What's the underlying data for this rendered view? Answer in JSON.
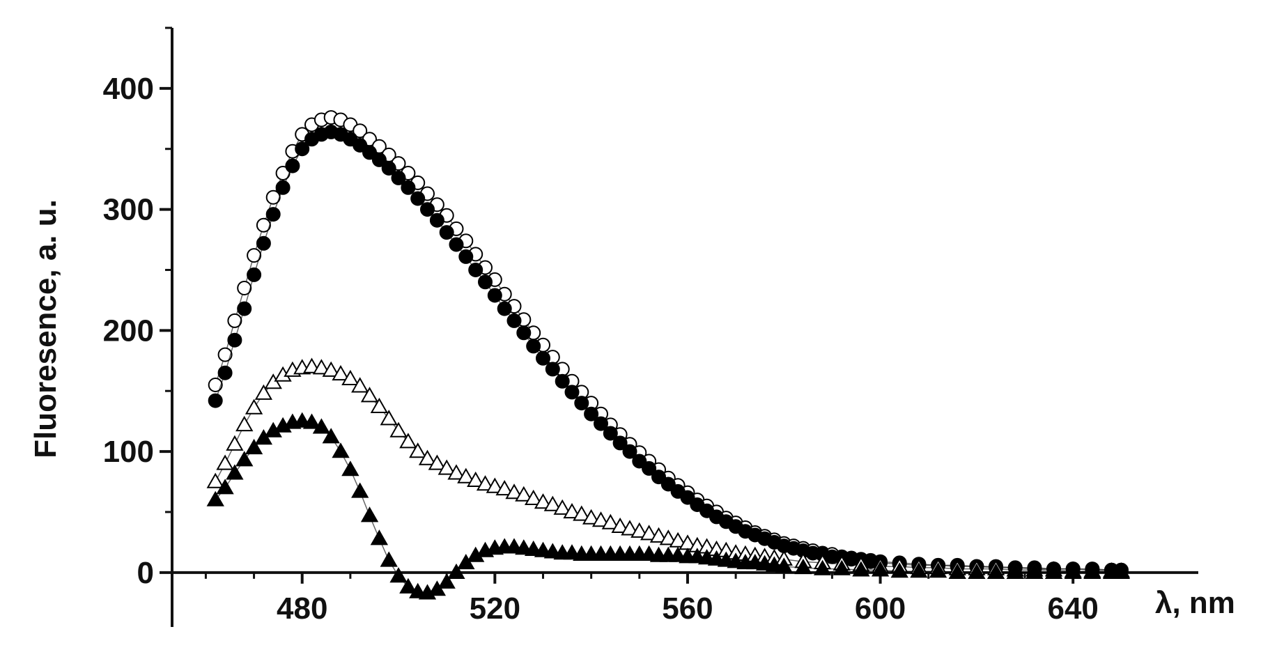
{
  "chart_data": {
    "type": "scatter",
    "title": "",
    "xlabel": "λ, nm",
    "ylabel": "Fluoresence, a. u.",
    "xlim": [
      453,
      666
    ],
    "ylim": [
      -45,
      450
    ],
    "x_ticks": [
      480,
      520,
      560,
      600,
      640
    ],
    "y_ticks": [
      0,
      100,
      200,
      300,
      400
    ],
    "grid": false,
    "legend": "none",
    "series": [
      {
        "marker": "open-circle",
        "color": "#000000",
        "x": [
          462,
          464,
          466,
          468,
          470,
          472,
          474,
          476,
          478,
          480,
          482,
          484,
          486,
          488,
          490,
          492,
          494,
          496,
          498,
          500,
          502,
          504,
          506,
          508,
          510,
          512,
          514,
          516,
          518,
          520,
          522,
          524,
          526,
          528,
          530,
          532,
          534,
          536,
          538,
          540,
          542,
          544,
          546,
          548,
          550,
          552,
          554,
          556,
          558,
          560,
          562,
          564,
          566,
          568,
          570,
          572,
          574,
          576,
          578,
          580,
          582,
          584,
          586,
          588,
          590,
          592,
          594,
          596,
          598,
          600,
          604,
          608,
          612,
          616,
          620,
          624,
          628,
          632,
          636,
          640,
          644,
          648,
          650
        ],
        "y": [
          155,
          180,
          208,
          235,
          262,
          287,
          310,
          330,
          348,
          362,
          370,
          374,
          376,
          374,
          370,
          365,
          358,
          352,
          345,
          338,
          330,
          322,
          313,
          304,
          295,
          284,
          274,
          263,
          252,
          242,
          230,
          220,
          209,
          198,
          188,
          178,
          168,
          158,
          149,
          140,
          131,
          122,
          114,
          106,
          99,
          92,
          85,
          78,
          72,
          66,
          60,
          55,
          50,
          45,
          41,
          37,
          33,
          30,
          27,
          24,
          22,
          20,
          18,
          16,
          15,
          13,
          12,
          11,
          10,
          9,
          8,
          7,
          6,
          6,
          5,
          5,
          4,
          4,
          3,
          3,
          3,
          2,
          2
        ]
      },
      {
        "marker": "filled-circle",
        "color": "#000000",
        "x": [
          462,
          464,
          466,
          468,
          470,
          472,
          474,
          476,
          478,
          480,
          482,
          484,
          486,
          488,
          490,
          492,
          494,
          496,
          498,
          500,
          502,
          504,
          506,
          508,
          510,
          512,
          514,
          516,
          518,
          520,
          522,
          524,
          526,
          528,
          530,
          532,
          534,
          536,
          538,
          540,
          542,
          544,
          546,
          548,
          550,
          552,
          554,
          556,
          558,
          560,
          562,
          564,
          566,
          568,
          570,
          572,
          574,
          576,
          578,
          580,
          582,
          584,
          586,
          588,
          590,
          592,
          594,
          596,
          598,
          600,
          604,
          608,
          612,
          616,
          620,
          624,
          628,
          632,
          636,
          640,
          644,
          648,
          650
        ],
        "y": [
          142,
          165,
          192,
          218,
          246,
          272,
          296,
          318,
          336,
          350,
          358,
          362,
          364,
          362,
          358,
          353,
          347,
          341,
          334,
          326,
          318,
          309,
          300,
          291,
          281,
          271,
          261,
          250,
          240,
          229,
          218,
          208,
          198,
          187,
          177,
          168,
          158,
          149,
          140,
          131,
          123,
          115,
          107,
          100,
          92,
          86,
          79,
          73,
          67,
          62,
          56,
          51,
          46,
          42,
          38,
          34,
          31,
          28,
          25,
          22,
          20,
          18,
          16,
          15,
          13,
          12,
          11,
          10,
          9,
          8,
          7,
          6,
          6,
          5,
          5,
          4,
          4,
          3,
          3,
          3,
          2,
          2,
          2
        ]
      },
      {
        "marker": "open-triangle",
        "color": "#000000",
        "x": [
          462,
          464,
          466,
          468,
          470,
          472,
          474,
          476,
          478,
          480,
          482,
          484,
          486,
          488,
          490,
          492,
          494,
          496,
          498,
          500,
          502,
          504,
          506,
          508,
          510,
          512,
          514,
          516,
          518,
          520,
          522,
          524,
          526,
          528,
          530,
          532,
          534,
          536,
          538,
          540,
          542,
          544,
          546,
          548,
          550,
          552,
          554,
          556,
          558,
          560,
          562,
          564,
          566,
          568,
          570,
          572,
          574,
          576,
          578,
          580,
          584,
          588,
          592,
          596,
          600,
          604,
          608,
          612,
          616,
          620,
          624,
          628,
          632,
          636,
          640,
          644,
          648,
          650
        ],
        "y": [
          75,
          90,
          106,
          122,
          136,
          148,
          157,
          163,
          167,
          169,
          170,
          169,
          167,
          164,
          160,
          154,
          146,
          137,
          127,
          117,
          108,
          100,
          94,
          90,
          86,
          82,
          79,
          76,
          73,
          71,
          69,
          66,
          64,
          61,
          58,
          56,
          53,
          50,
          48,
          45,
          43,
          41,
          38,
          36,
          34,
          32,
          30,
          28,
          26,
          24,
          22,
          21,
          19,
          18,
          16,
          15,
          14,
          13,
          12,
          11,
          9,
          8,
          7,
          6,
          5,
          5,
          4,
          4,
          3,
          3,
          3,
          2,
          2,
          2,
          1,
          1,
          1,
          1
        ]
      },
      {
        "marker": "filled-triangle",
        "color": "#000000",
        "x": [
          462,
          464,
          466,
          468,
          470,
          472,
          474,
          476,
          478,
          480,
          482,
          484,
          486,
          488,
          490,
          492,
          494,
          496,
          498,
          500,
          502,
          504,
          506,
          508,
          510,
          512,
          514,
          516,
          518,
          520,
          522,
          524,
          526,
          528,
          530,
          532,
          534,
          536,
          538,
          540,
          542,
          544,
          546,
          548,
          550,
          552,
          554,
          556,
          558,
          560,
          562,
          564,
          566,
          568,
          570,
          572,
          574,
          576,
          578,
          580,
          584,
          588,
          592,
          596,
          600,
          604,
          608,
          612,
          616,
          620,
          624,
          628,
          632,
          636,
          640,
          644,
          648,
          650
        ],
        "y": [
          60,
          70,
          82,
          93,
          103,
          111,
          117,
          121,
          124,
          125,
          124,
          120,
          112,
          100,
          85,
          67,
          47,
          28,
          10,
          -3,
          -12,
          -16,
          -17,
          -14,
          -8,
          0,
          8,
          14,
          18,
          20,
          21,
          21,
          20,
          19,
          18,
          17,
          16,
          16,
          15,
          15,
          15,
          15,
          15,
          15,
          15,
          15,
          14,
          14,
          14,
          13,
          13,
          12,
          11,
          10,
          9,
          8,
          8,
          7,
          6,
          5,
          4,
          3,
          3,
          2,
          2,
          1,
          1,
          1,
          0,
          0,
          0,
          0,
          0,
          0,
          0,
          0,
          0,
          0
        ]
      }
    ]
  }
}
